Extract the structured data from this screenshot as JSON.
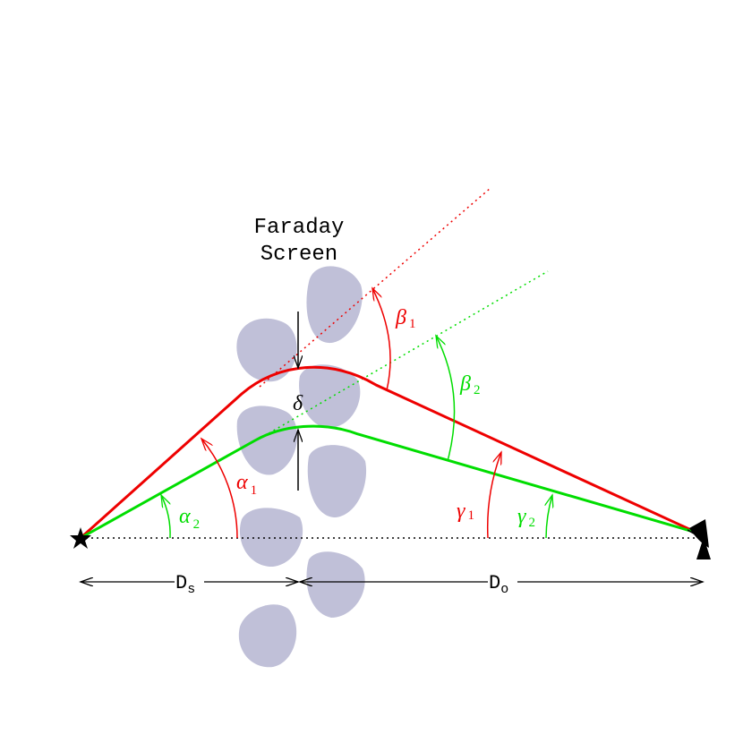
{
  "title": {
    "line1": "Faraday",
    "line2": "Screen"
  },
  "labels": {
    "beta1": {
      "symbol": "β",
      "subscript": "1"
    },
    "beta2": {
      "symbol": "β",
      "subscript": "2"
    },
    "alpha1": {
      "symbol": "α",
      "subscript": "1"
    },
    "alpha2": {
      "symbol": "α",
      "subscript": "2"
    },
    "gamma1": {
      "symbol": "γ",
      "subscript": "1"
    },
    "gamma2": {
      "symbol": "γ",
      "subscript": "2"
    },
    "delta": "δ",
    "ds": {
      "symbol": "D",
      "subscript": "s"
    },
    "do": {
      "symbol": "D",
      "subscript": "o"
    }
  }
}
